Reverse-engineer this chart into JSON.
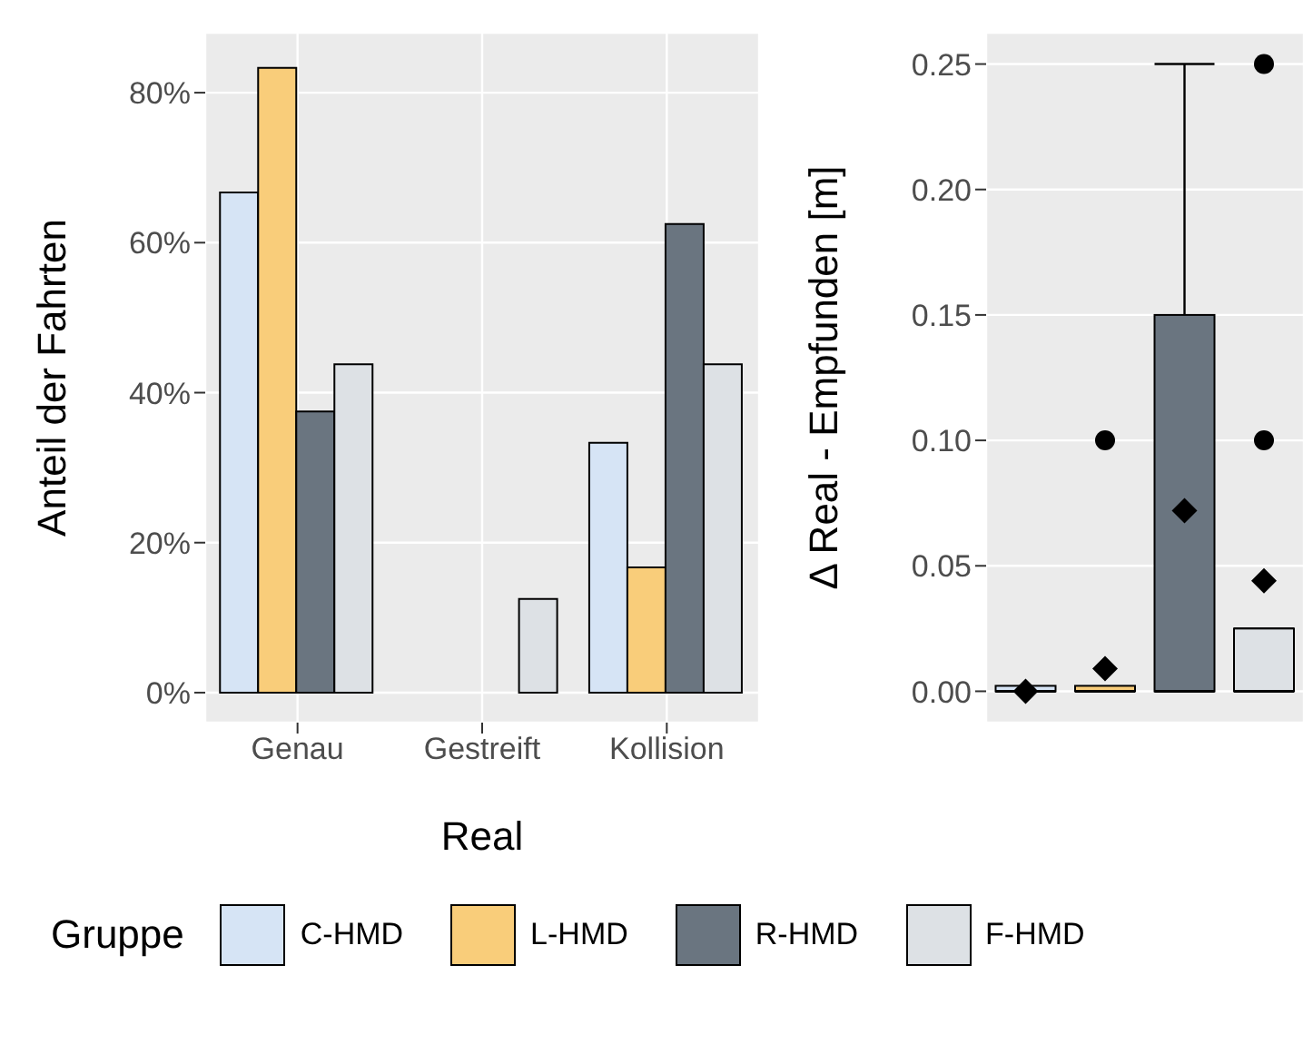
{
  "chart_data": [
    {
      "type": "bar",
      "categories": [
        "Genau",
        "Gestreift",
        "Kollision"
      ],
      "xlabel": "Real",
      "ylabel": "Anteil der Fahrten",
      "legend_title": "Gruppe",
      "legend": "bottom",
      "grid": true,
      "ylim": [
        -4,
        88
      ],
      "yticks": [
        {
          "value": 0,
          "label": "0%"
        },
        {
          "value": 20,
          "label": "20%"
        },
        {
          "value": 40,
          "label": "40%"
        },
        {
          "value": 60,
          "label": "60%"
        },
        {
          "value": 80,
          "label": "80%"
        }
      ],
      "series": [
        {
          "name": "C-HMD",
          "color": "#d6e4f5",
          "values": [
            66.7,
            0,
            33.3
          ]
        },
        {
          "name": "L-HMD",
          "color": "#f9cd7a",
          "values": [
            83.3,
            0,
            16.7
          ]
        },
        {
          "name": "R-HMD",
          "color": "#6a7580",
          "values": [
            37.5,
            0,
            62.5
          ]
        },
        {
          "name": "F-HMD",
          "color": "#dde1e5",
          "values": [
            43.8,
            12.5,
            43.8
          ]
        }
      ]
    },
    {
      "type": "box",
      "categories": [
        null,
        null,
        null,
        null
      ],
      "ylabel": "Δ Real - Empfunden [m]",
      "grid": true,
      "tick_labels": "y",
      "ylim": [
        -0.0125,
        0.2625
      ],
      "yticks": [
        {
          "value": 0,
          "label": "0.00"
        },
        {
          "value": 0.05,
          "label": "0.05"
        },
        {
          "value": 0.1,
          "label": "0.10"
        },
        {
          "value": 0.15,
          "label": "0.15"
        },
        {
          "value": 0.2,
          "label": "0.20"
        },
        {
          "value": 0.25,
          "label": "0.25"
        }
      ],
      "colors": [
        "#d6e4f5",
        "#f9cd7a",
        "#6a7580",
        "#dde1e5"
      ],
      "boxes": [
        {
          "low": 0,
          "q1": 0,
          "median": 0,
          "q3": 0,
          "high": 0,
          "mean": 0
        },
        {
          "low": 0,
          "q1": 0,
          "median": 0,
          "q3": 0,
          "high": 0,
          "mean": 0.009,
          "outliers": [
            0.1
          ]
        },
        {
          "low": 0,
          "q1": 0,
          "median": 0,
          "q3": 0.15,
          "high": 0.25,
          "mean": 0.072
        },
        {
          "low": 0,
          "q1": 0,
          "median": 0,
          "q3": 0.025,
          "high": 0.025,
          "mean": 0.044,
          "outliers": [
            0.1,
            0.25
          ]
        }
      ]
    }
  ]
}
